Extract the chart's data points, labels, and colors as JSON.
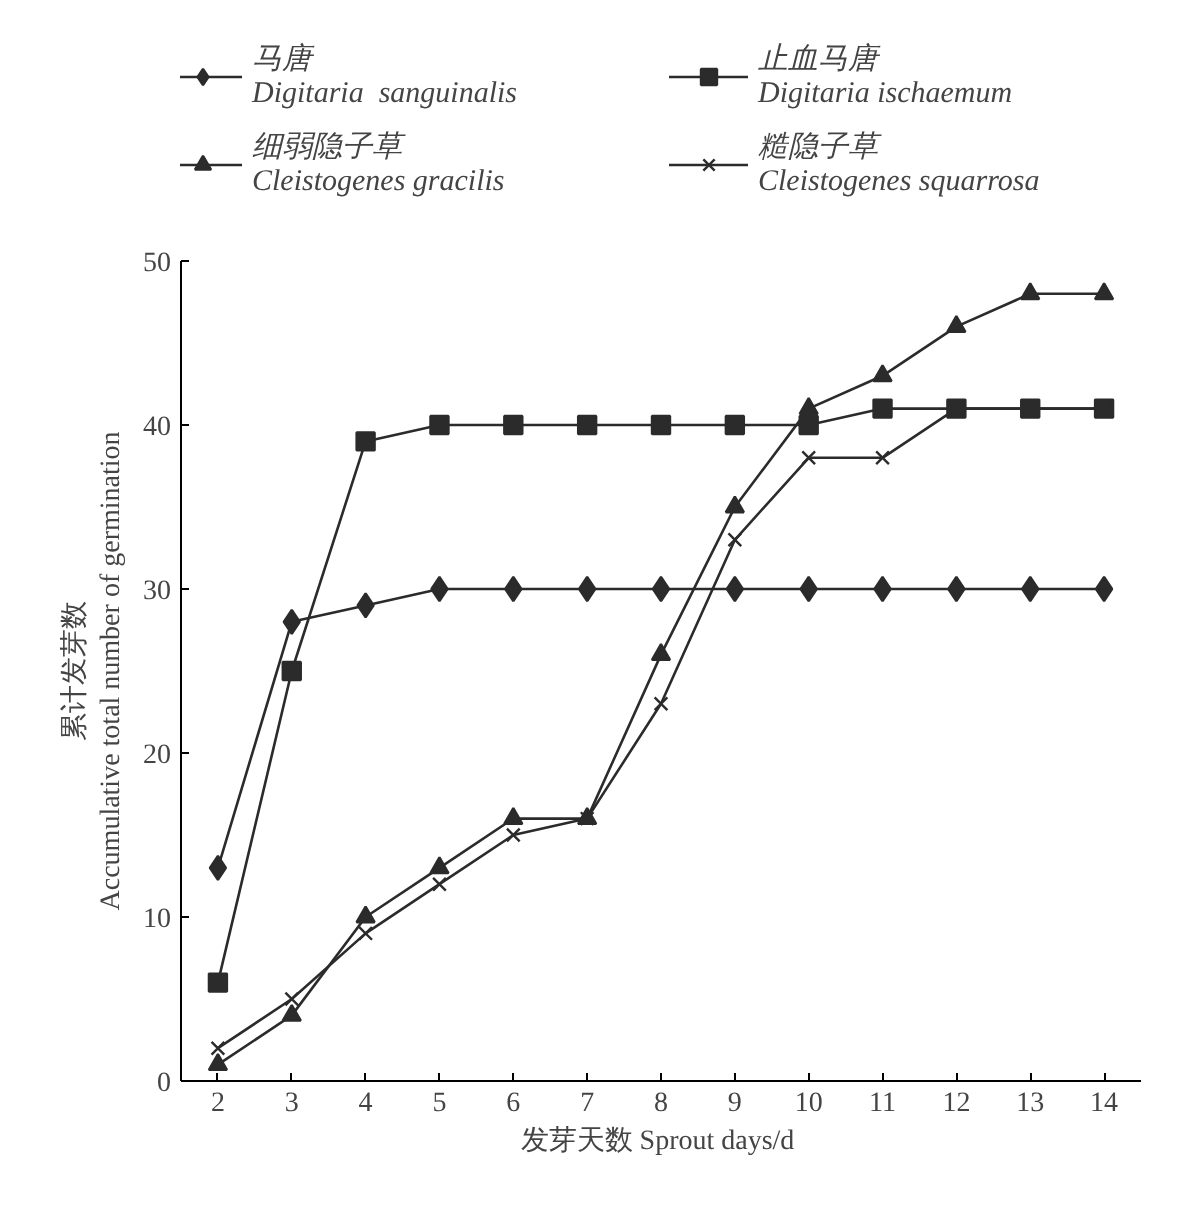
{
  "chart_data": {
    "type": "line",
    "xlabel": "发芽天数  Sprout days/d",
    "ylabel": "累计发芽数\nAccumulative total number of germination",
    "x": [
      2,
      3,
      4,
      5,
      6,
      7,
      8,
      9,
      10,
      11,
      12,
      13,
      14
    ],
    "xlim": [
      1.5,
      14.5
    ],
    "xticks": [
      2,
      3,
      4,
      5,
      6,
      7,
      8,
      9,
      10,
      11,
      12,
      13,
      14
    ],
    "ylim": [
      0,
      50
    ],
    "yticks": [
      0,
      10,
      20,
      30,
      40,
      50
    ],
    "grid": false,
    "legend": "top",
    "line_style": "solid",
    "series": [
      {
        "name": "马唐\nDigitaria  sanguinalis",
        "color": "#2b2b2b",
        "marker": "diamond",
        "values": [
          13,
          28,
          29,
          30,
          30,
          30,
          30,
          30,
          30,
          30,
          30,
          30,
          30
        ]
      },
      {
        "name": "止血马唐\nDigitaria ischaemum",
        "color": "#2b2b2b",
        "marker": "square",
        "values": [
          6,
          25,
          39,
          40,
          40,
          40,
          40,
          40,
          40,
          41,
          41,
          41,
          41
        ]
      },
      {
        "name": "细弱隐子草\nCleistogenes gracilis",
        "color": "#2b2b2b",
        "marker": "triangle",
        "values": [
          1,
          4,
          10,
          13,
          16,
          16,
          26,
          35,
          41,
          43,
          46,
          48,
          48
        ]
      },
      {
        "name": "糙隐子草\nCleistogenes squarrosa",
        "color": "#2b2b2b",
        "marker": "x",
        "values": [
          2,
          5,
          9,
          12,
          15,
          16,
          23,
          33,
          38,
          38,
          41,
          41,
          41
        ]
      }
    ]
  }
}
